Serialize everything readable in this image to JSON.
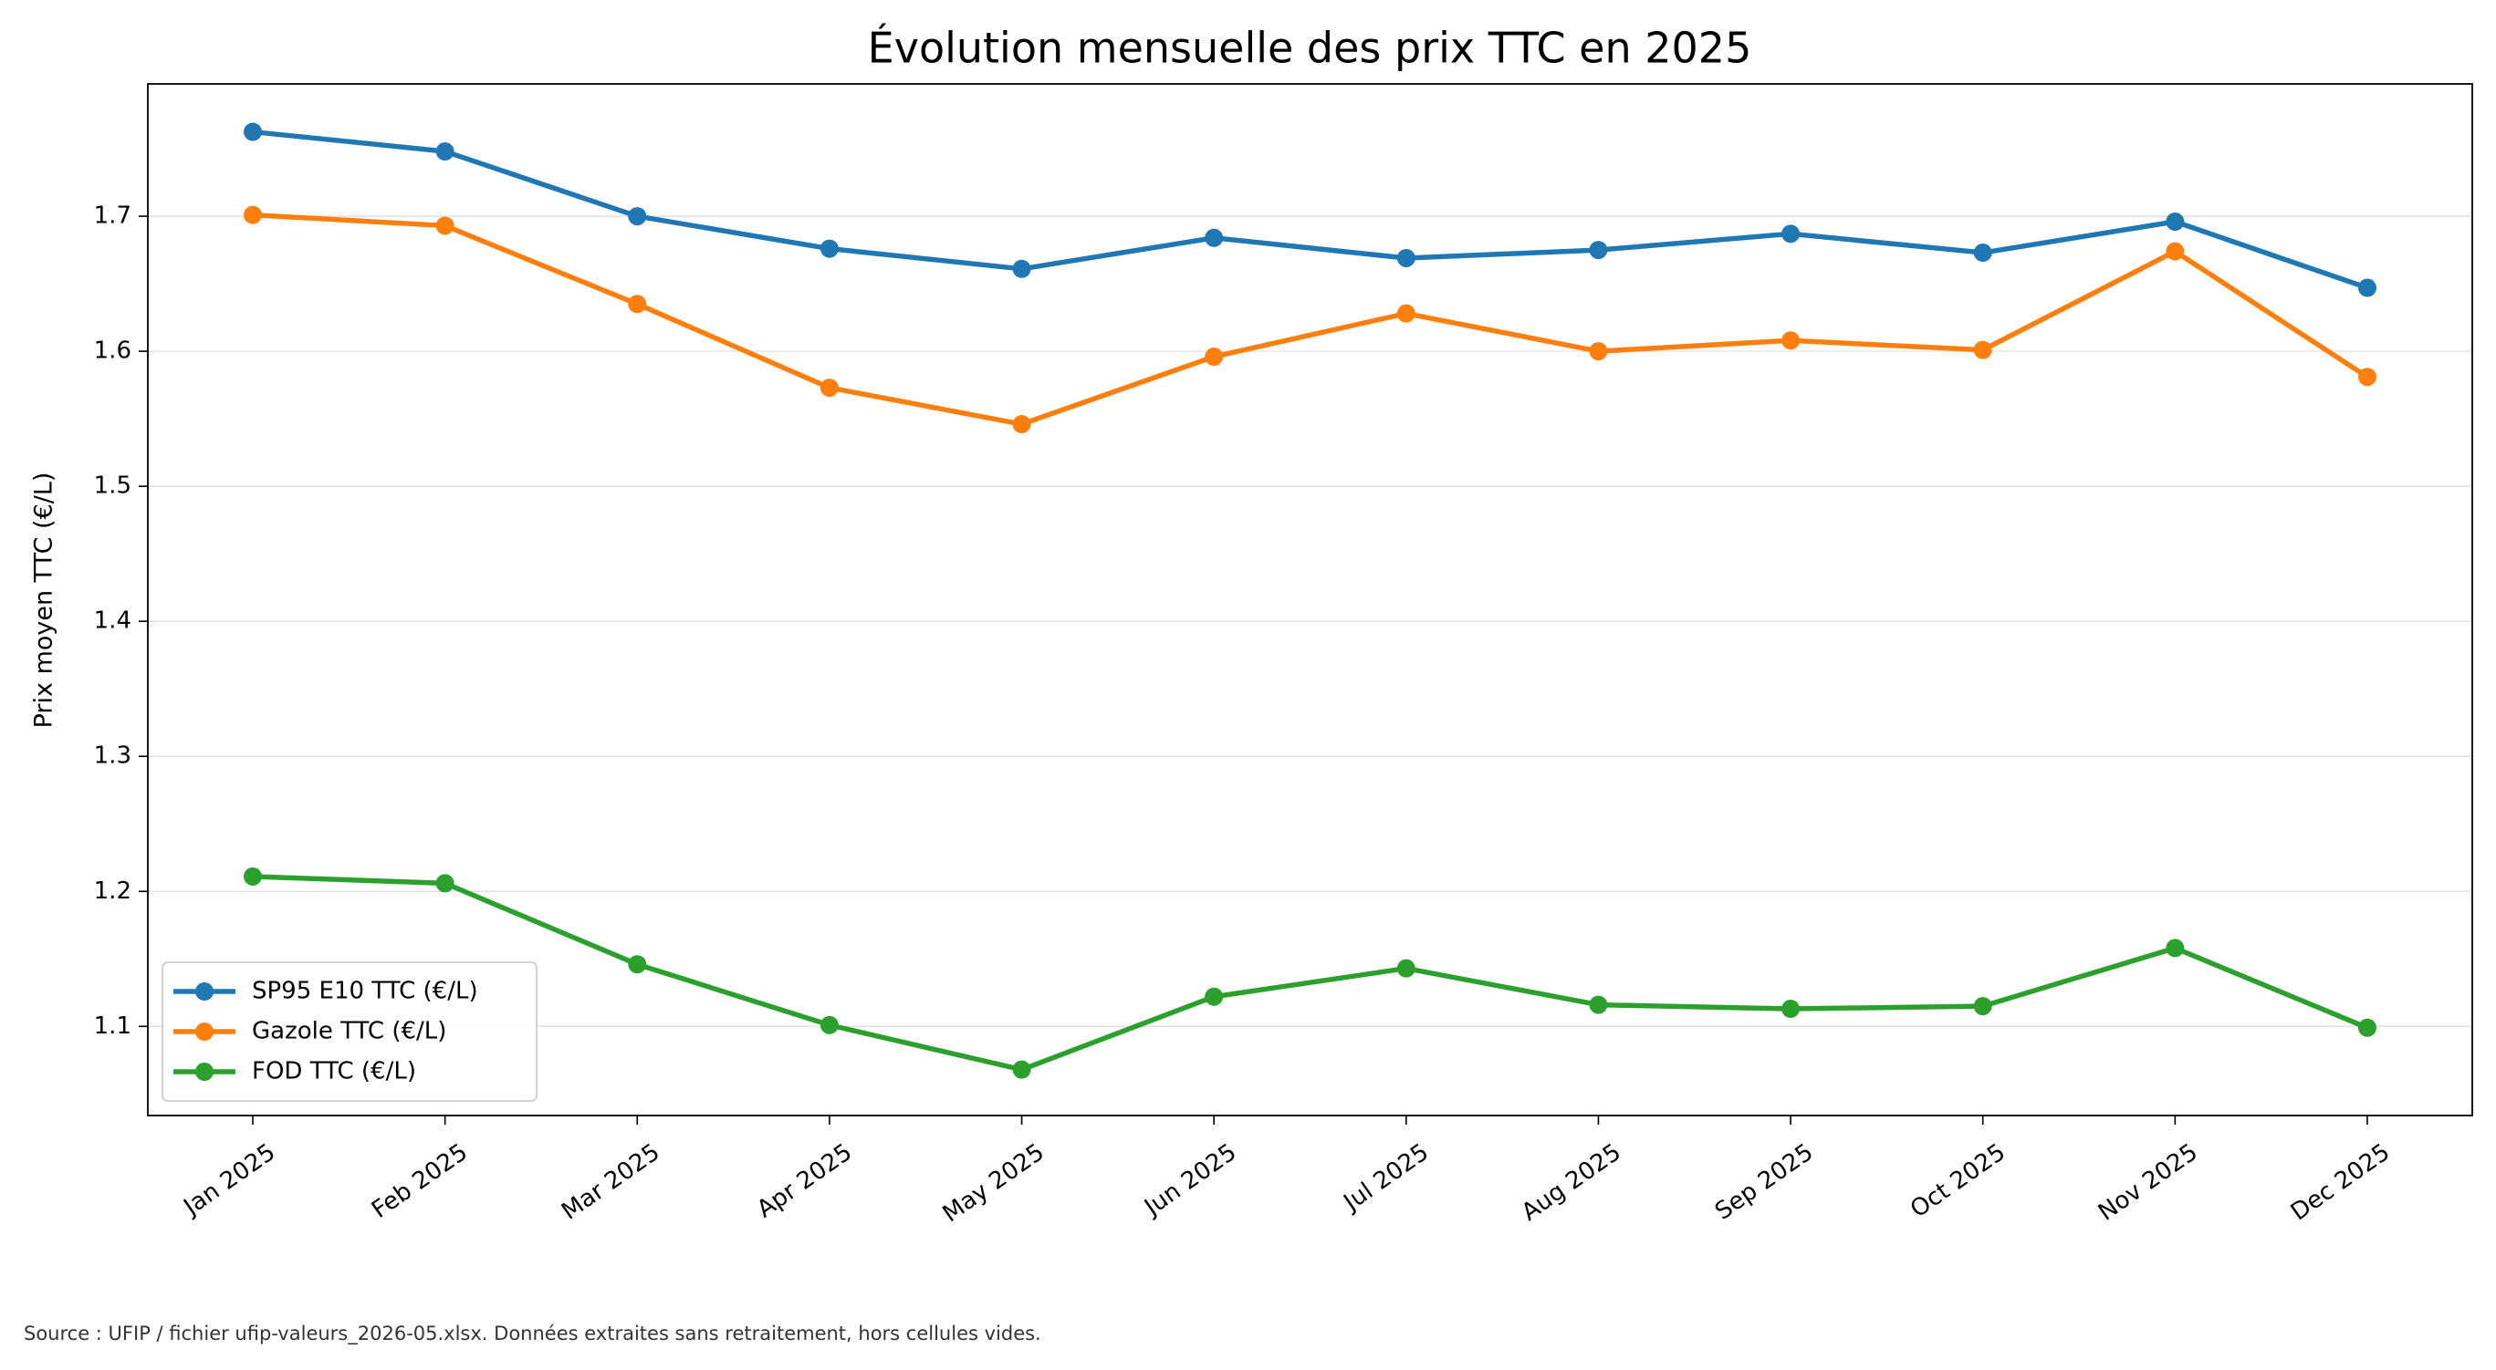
{
  "chart_data": {
    "type": "line",
    "title": "Évolution mensuelle des prix TTC en 2025",
    "y_label": "Prix moyen TTC (€/L)",
    "source": "Source : UFIP / fichier ufip-valeurs_2026-05.xlsx. Données extraites sans retraitement, hors cellules vides.",
    "categories": [
      "Jan 2025",
      "Feb 2025",
      "Mar 2025",
      "Apr 2025",
      "May 2025",
      "Jun 2025",
      "Jul 2025",
      "Aug 2025",
      "Sep 2025",
      "Oct 2025",
      "Nov 2025",
      "Dec 2025"
    ],
    "series": [
      {
        "name": "SP95 E10 TTC (€/L)",
        "color": "#1f77b4",
        "values": [
          1.7625,
          1.748,
          1.7,
          1.676,
          1.661,
          1.684,
          1.669,
          1.675,
          1.687,
          1.673,
          1.696,
          1.647
        ]
      },
      {
        "name": "Gazole TTC (€/L)",
        "color": "#ff7f0e",
        "values": [
          1.701,
          1.693,
          1.635,
          1.573,
          1.546,
          1.596,
          1.628,
          1.6,
          1.608,
          1.601,
          1.674,
          1.581
        ]
      },
      {
        "name": "FOD TTC (€/L)",
        "color": "#2ca02c",
        "values": [
          1.211,
          1.206,
          1.146,
          1.101,
          1.068,
          1.122,
          1.143,
          1.116,
          1.113,
          1.115,
          1.158,
          1.099
        ]
      }
    ],
    "ylim": [
      1.034,
      1.798
    ],
    "yticks": [
      1.1,
      1.2,
      1.3,
      1.4,
      1.5,
      1.6,
      1.7
    ],
    "grid": true,
    "legend": "lower left"
  }
}
